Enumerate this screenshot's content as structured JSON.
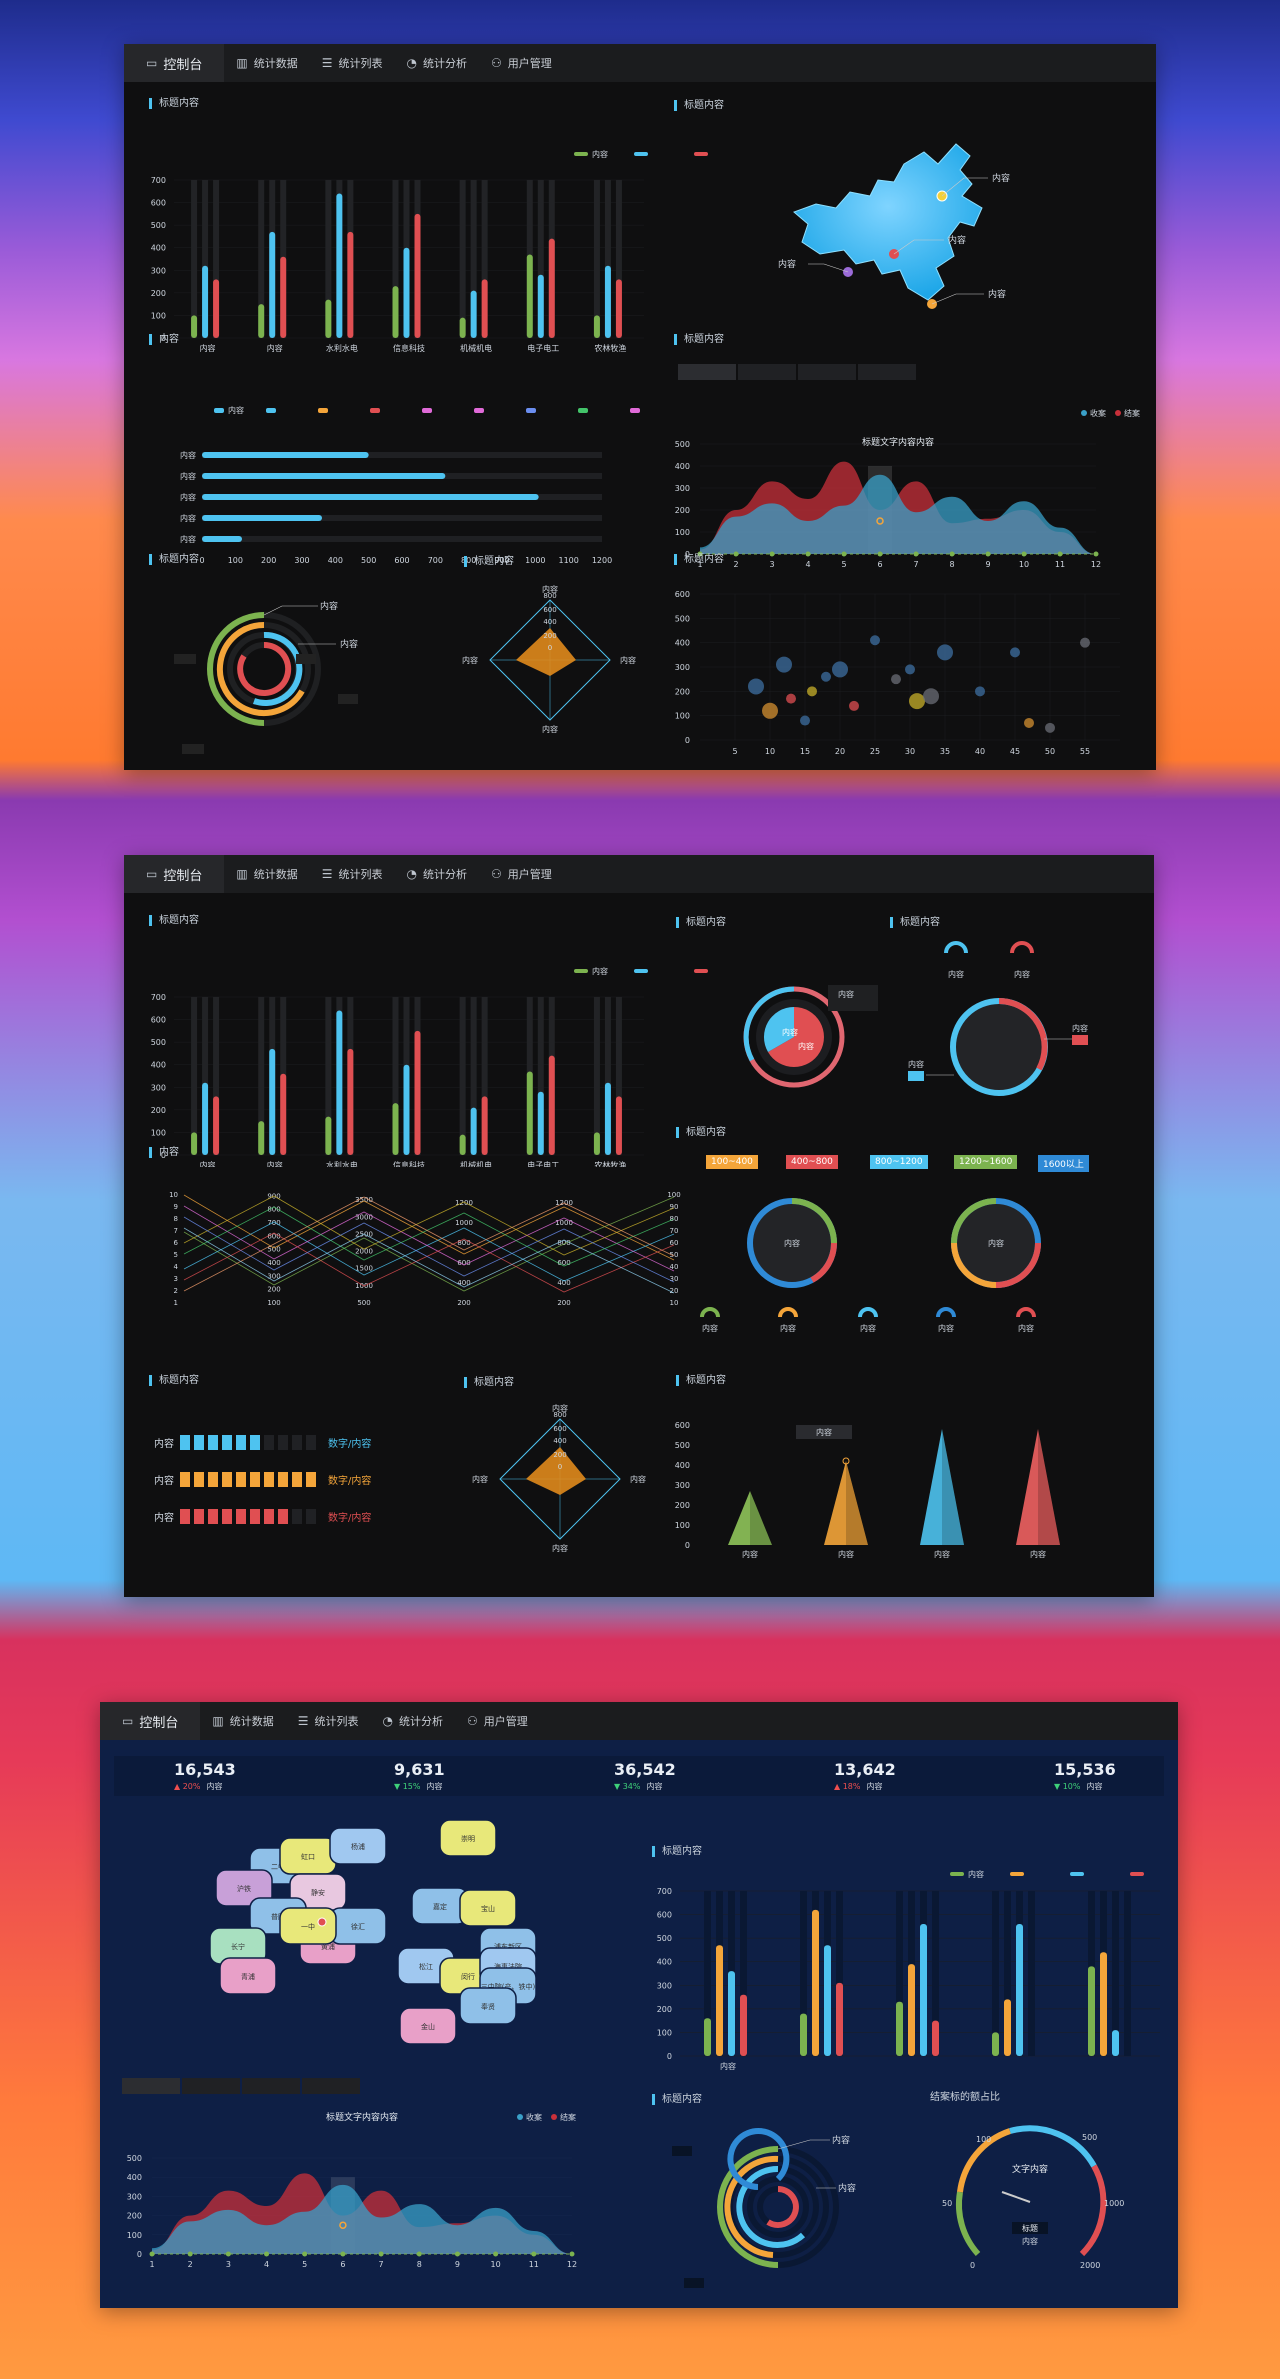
{
  "nav": {
    "console": "控制台",
    "items": [
      "统计数据",
      "统计列表",
      "统计分析",
      "用户管理"
    ]
  },
  "colors": {
    "green": "#7cb34f",
    "blue": "#4ec3f0",
    "red": "#e04f52",
    "orange": "#f4a53a",
    "navy": "#0e1f45",
    "panel": "#0f0f10"
  },
  "common": {
    "title": "标题内容",
    "content": "内容",
    "content_title": "标题文字内容内容",
    "legend_harvest": "收案",
    "legend_close": "结案",
    "number_content": "数字/内容"
  },
  "panel1": {
    "bar_chart_data": {
      "type": "bar",
      "categories": [
        "内容",
        "内容",
        "水利水电",
        "信息科技",
        "机械机电",
        "电子电工",
        "农林牧渔"
      ],
      "series": [
        {
          "name": "内容",
          "values": [
            100,
            150,
            170,
            230,
            90,
            370,
            100
          ]
        },
        {
          "name": "",
          "values": [
            320,
            470,
            640,
            400,
            210,
            280,
            320
          ]
        },
        {
          "name": "",
          "values": [
            260,
            360,
            470,
            550,
            260,
            440,
            260
          ]
        }
      ],
      "ylim": [
        0,
        700
      ],
      "yticks": [
        0,
        100,
        200,
        300,
        400,
        500,
        600,
        700
      ]
    },
    "map_labels": [
      "内容",
      "内容",
      "内容",
      "内容",
      "内容"
    ],
    "hbar_chart_data": {
      "type": "bar",
      "categories": [
        "内容",
        "内容",
        "内容",
        "内容",
        "内容"
      ],
      "values": [
        500,
        730,
        1010,
        360,
        120
      ],
      "xlim": [
        0,
        1200
      ],
      "xticks": [
        0,
        100,
        200,
        300,
        400,
        500,
        600,
        700,
        800,
        900,
        1000,
        1100,
        1200
      ]
    },
    "area_chart_data": {
      "type": "area",
      "title": "标题文字内容内容",
      "x": [
        1,
        2,
        3,
        4,
        5,
        6,
        7,
        8,
        9,
        10,
        11,
        12
      ],
      "series": [
        {
          "name": "收案",
          "values": [
            30,
            170,
            230,
            150,
            220,
            360,
            190,
            260,
            150,
            240,
            120,
            0
          ]
        },
        {
          "name": "结案",
          "values": [
            20,
            200,
            330,
            250,
            420,
            200,
            330,
            140,
            160,
            200,
            100,
            0
          ]
        }
      ],
      "ylim": [
        0,
        500
      ],
      "yticks": [
        0,
        100,
        200,
        300,
        400,
        500
      ]
    },
    "radial_labels": [
      "内容",
      "内容"
    ],
    "radar_labels": [
      "内容",
      "内容",
      "内容",
      "内容"
    ],
    "radar_ticks": [
      "0",
      "200",
      "400",
      "600",
      "800"
    ],
    "scatter_chart_data": {
      "type": "scatter",
      "xticks": [
        5,
        10,
        15,
        20,
        25,
        30,
        35,
        40,
        45,
        50,
        55
      ],
      "yticks": [
        0,
        100,
        200,
        300,
        400,
        500,
        600
      ],
      "points": [
        [
          8,
          320
        ],
        [
          13,
          270
        ],
        [
          16,
          300
        ],
        [
          20,
          390
        ],
        [
          28,
          350
        ],
        [
          30,
          390
        ],
        [
          35,
          460
        ],
        [
          45,
          460
        ],
        [
          55,
          500
        ],
        [
          10,
          220
        ],
        [
          15,
          180
        ],
        [
          22,
          240
        ],
        [
          31,
          260
        ],
        [
          40,
          300
        ],
        [
          50,
          150
        ],
        [
          12,
          410
        ],
        [
          18,
          360
        ],
        [
          25,
          510
        ],
        [
          33,
          280
        ],
        [
          47,
          170
        ]
      ]
    }
  },
  "panel2": {
    "bar_chart_data": {
      "type": "bar",
      "categories": [
        "内容",
        "内容",
        "水利水电",
        "信息科技",
        "机械机电",
        "电子电工",
        "农林牧渔"
      ],
      "series": [
        {
          "name": "内容",
          "values": [
            100,
            150,
            170,
            230,
            90,
            370,
            100
          ]
        },
        {
          "name": "",
          "values": [
            320,
            470,
            640,
            400,
            210,
            280,
            320
          ]
        },
        {
          "name": "",
          "values": [
            260,
            360,
            470,
            550,
            260,
            440,
            260
          ]
        }
      ],
      "ylim": [
        0,
        700
      ]
    },
    "range_tags": [
      "100~400",
      "400~800",
      "800~1200",
      "1200~1600",
      "1600以上"
    ],
    "parallel_axes": {
      "a1": [
        "1",
        "2",
        "3",
        "4",
        "5",
        "6",
        "7",
        "8",
        "9",
        "10"
      ],
      "a2": [
        "100",
        "200",
        "300",
        "400",
        "500",
        "600",
        "700",
        "800",
        "900"
      ],
      "a3": [
        "500",
        "1000",
        "1500",
        "2000",
        "2500",
        "3000",
        "3500"
      ],
      "a4": [
        "200",
        "400",
        "600",
        "800",
        "1000",
        "1200"
      ],
      "a5": [
        "200",
        "400",
        "600",
        "800",
        "1000",
        "1200"
      ],
      "a6": [
        "10",
        "20",
        "30",
        "40",
        "50",
        "60",
        "70",
        "80",
        "90",
        "100"
      ]
    },
    "seg_rows": [
      {
        "label": "内容",
        "filled": 6,
        "total": 10,
        "color": "#4ec3f0"
      },
      {
        "label": "内容",
        "filled": 10,
        "total": 10,
        "color": "#f4a53a"
      },
      {
        "label": "内容",
        "filled": 8,
        "total": 10,
        "color": "#e04f52"
      }
    ],
    "cone_chart_data": {
      "type": "bar",
      "categories": [
        "内容",
        "内容",
        "内容",
        "内容"
      ],
      "values": [
        270,
        420,
        580,
        580
      ],
      "ylim": [
        0,
        600
      ],
      "yticks": [
        0,
        100,
        200,
        300,
        400,
        500,
        600
      ],
      "tooltip": "内容"
    }
  },
  "panel3": {
    "kpis": [
      {
        "value": "16,543",
        "delta": "20%",
        "dir": "up",
        "label": "内容"
      },
      {
        "value": "9,631",
        "delta": "15%",
        "dir": "dn",
        "label": "内容"
      },
      {
        "value": "36,542",
        "delta": "34%",
        "dir": "dn",
        "label": "内容"
      },
      {
        "value": "13,642",
        "delta": "18%",
        "dir": "up",
        "label": "内容"
      },
      {
        "value": "15,536",
        "delta": "10%",
        "dir": "dn",
        "label": "内容"
      }
    ],
    "map_districts": [
      "二中",
      "沪铁",
      "虹口",
      "杨浦",
      "崇明",
      "静安",
      "普陀",
      "嘉定",
      "宝山",
      "长宁",
      "黄浦",
      "徐汇",
      "浦东新区",
      "一中",
      "松江",
      "闵行",
      "青浦",
      "海事法院",
      "三中院(产、铁中)",
      "奉贤",
      "金山"
    ],
    "bar_chart_data": {
      "type": "bar",
      "categories": [
        "内容",
        "",
        "",
        "",
        ""
      ],
      "series": [
        {
          "name": "内容",
          "values": [
            160,
            180,
            230,
            100,
            380
          ]
        },
        {
          "name": "",
          "values": [
            470,
            620,
            390,
            240,
            440
          ]
        },
        {
          "name": "",
          "values": [
            360,
            470,
            560,
            560,
            110
          ]
        },
        {
          "name": "",
          "values": [
            260,
            310,
            150,
            0,
            0
          ]
        }
      ],
      "ylim": [
        0,
        700
      ],
      "yticks": [
        0,
        100,
        200,
        300,
        400,
        500,
        600,
        700
      ]
    },
    "gauge": {
      "title": "结案标的额占比",
      "center_label": "文字内容",
      "badge": "标题",
      "sub": "内容",
      "ticks": [
        "0",
        "50",
        "100",
        "500",
        "1000",
        "2000"
      ]
    }
  }
}
